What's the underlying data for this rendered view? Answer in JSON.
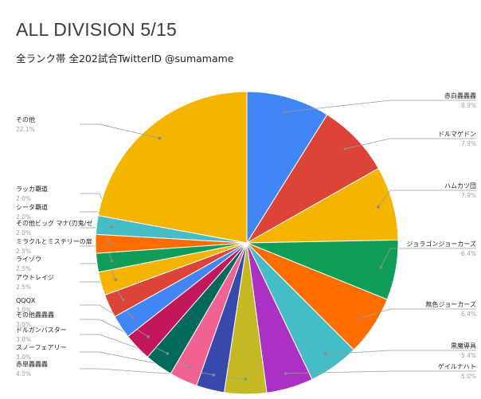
{
  "chart_data": {
    "type": "pie",
    "title": "ALL DIVISION 5/15",
    "subtitle": "全ランク帯 全202試合TwitterID @sumamame",
    "slices": [
      {
        "label": "赤白轟轟轟",
        "value": 8.9,
        "pct_label": "8.9%",
        "color": "#4285f4"
      },
      {
        "label": "ドルマゲドン",
        "value": 7.9,
        "pct_label": "7.9%",
        "color": "#db4437"
      },
      {
        "label": "ハムカツ団",
        "value": 7.9,
        "pct_label": "7.9%",
        "color": "#f4b400"
      },
      {
        "label": "ジョラゴンジョーカーズ",
        "value": 6.4,
        "pct_label": "6.4%",
        "color": "#0f9d58"
      },
      {
        "label": "無色ジョーカーズ",
        "value": 6.4,
        "pct_label": "6.4%",
        "color": "#ff6d00"
      },
      {
        "label": "黒魔導具",
        "value": 5.4,
        "pct_label": "5.4%",
        "color": "#46bdc6"
      },
      {
        "label": "ゲイルナハト",
        "value": 5.0,
        "pct_label": "5.0%",
        "color": "#ab30c4"
      },
      {
        "label": "赤単轟轟轟",
        "value": 4.5,
        "pct_label": "4.5%",
        "color": "#c4b924"
      },
      {
        "label": "スノーフェアリー",
        "value": 3.0,
        "pct_label": "3.0%",
        "color": "#3949ab"
      },
      {
        "label": "ドルガンバスター",
        "value": 3.0,
        "pct_label": "3.0%",
        "color": "#f06292"
      },
      {
        "label": "その他轟轟轟",
        "value": 3.0,
        "pct_label": "3.0%",
        "color": "#00695c"
      },
      {
        "label": "QQQX",
        "value": 3.0,
        "pct_label": "3.0%",
        "color": "#c2185b"
      },
      {
        "label": "アウトレイジ",
        "value": 2.5,
        "pct_label": "2.5%",
        "color": "#4285f4"
      },
      {
        "label": "ライゾウ",
        "value": 2.5,
        "pct_label": "2.5%",
        "color": "#db4437"
      },
      {
        "label": "ミラクルとミステリーの扉",
        "value": 2.5,
        "pct_label": "2.5%",
        "color": "#f4b400"
      },
      {
        "label": "その他ビッグ マナ(刃鬼/ゼ",
        "value": 2.0,
        "pct_label": "2.0%",
        "color": "#0f9d58"
      },
      {
        "label": "シータ覇道",
        "value": 2.0,
        "pct_label": "2.0%",
        "color": "#ff6d00"
      },
      {
        "label": "ラッカ覇道",
        "value": 2.0,
        "pct_label": "2.0%",
        "color": "#46bdc6"
      },
      {
        "label": "その他",
        "value": 22.1,
        "pct_label": "22.1%",
        "color": "#f4b400"
      }
    ]
  }
}
